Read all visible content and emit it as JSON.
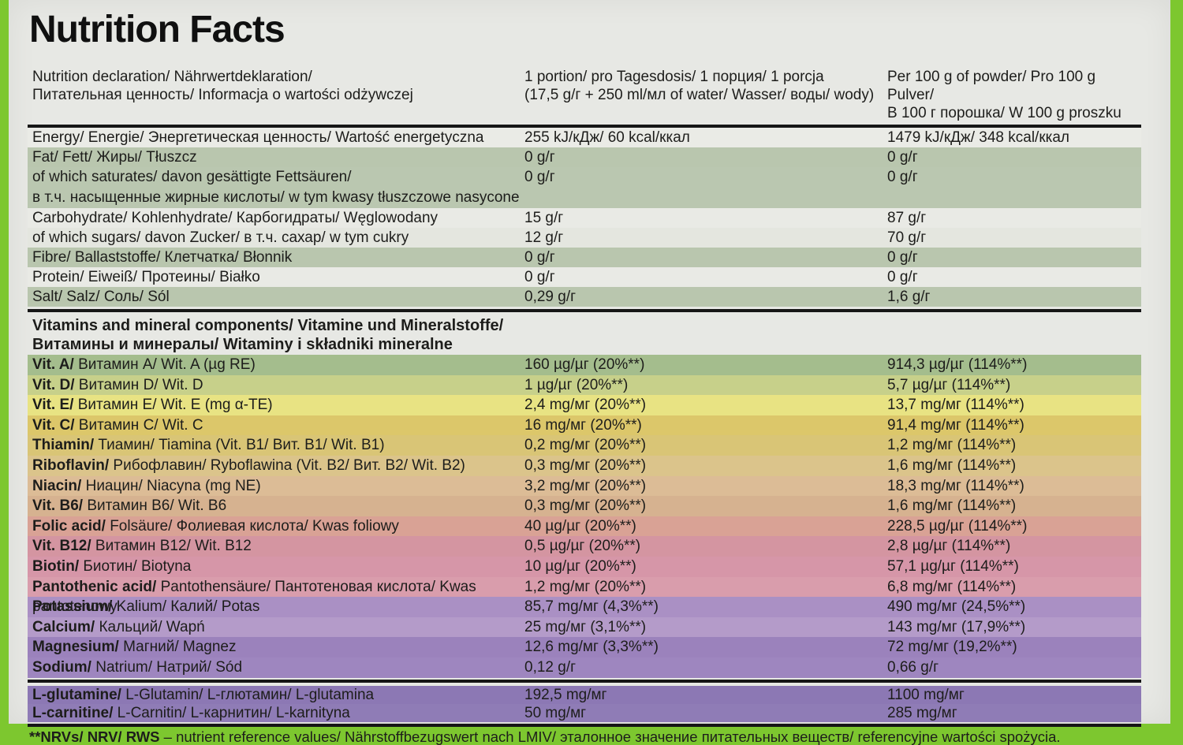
{
  "title": "Nutrition Facts",
  "colors": {
    "package_green": "#7dc72f",
    "paper": "#e7e8e4",
    "rule_black": "#161616",
    "text": "#1d1d1b"
  },
  "header": {
    "col1": [
      "Nutrition declaration/ Nährwertdeklaration/",
      "Питательная ценность/ Informacja o wartości odżywczej"
    ],
    "col2": [
      "1 portion/ pro Tagesdosis/ 1 порция/ 1 porcja",
      "(17,5 g/г + 250 ml/мл of water/ Wasser/ воды/ wody)"
    ],
    "col3": [
      "Per 100 g of powder/ Pro 100 g Pulver/",
      "В 100 г порошка/ W 100 g proszku"
    ]
  },
  "macros": {
    "rows": [
      {
        "label": "Energy/ Energie/ Энергетическая ценность/ Wartość energetyczna",
        "portion": "255 kJ/кДж/ 60 kcal/ккал",
        "per100": "1479 kJ/кДж/ 348 kcal/ккал",
        "bg": "#eaebe6"
      },
      {
        "label": "Fat/ Fett/ Жиры/ Tłuszcz",
        "portion": "0 g/г",
        "per100": "0 g/г",
        "bg": "#b9c6ae"
      },
      {
        "label": "of which saturates/ davon gesättigte Fettsäuren/",
        "label2": "в т.ч. насыщенные жирные кислоты/ w tym kwasy tłuszczowe nasycone",
        "portion": "0 g/г",
        "per100": "0 g/г",
        "bg": "#bac7b0"
      },
      {
        "label": "Carbohydrate/ Kohlenhydrate/ Карбогидраты/ Węglowodany",
        "portion": "15 g/г",
        "per100": "87 g/г",
        "bg": "#e9eae5"
      },
      {
        "label": "of which sugars/ davon Zucker/ в т.ч. сахар/ w tym cukry",
        "portion": "12 g/г",
        "per100": "70 g/г",
        "bg": "#e4e6df"
      },
      {
        "label": "Fibre/ Ballaststoffe/ Клетчатка/ Błonnik",
        "portion": "0 g/г",
        "per100": "0 g/г",
        "bg": "#b9c6ae"
      },
      {
        "label": "Protein/ Eiweiß/ Протеины/ Białko",
        "portion": "0 g/г",
        "per100": "0 g/г",
        "bg": "#e9eae5"
      },
      {
        "label": "Salt/ Salz/ Соль/ Sól",
        "portion": "0,29 g/г",
        "per100": "1,6 g/г",
        "bg": "#b9c6ae"
      }
    ]
  },
  "vitamins_header": [
    "Vitamins and mineral components/ Vitamine und Mineralstoffe/",
    "Витамины и минералы/ Witaminy i składniki mineralne"
  ],
  "vitamins": {
    "rows": [
      {
        "name": "Vit. A/",
        "rest": " Витамин A/ Wit. A (µg RE)",
        "portion": "160 µg/µг (20%**)",
        "per100": "914,3 µg/µг (114%**)",
        "bg": "#a4bd8d"
      },
      {
        "name": "Vit. D/",
        "rest": " Витамин D/ Wit. D",
        "portion": "1 µg/µг (20%**)",
        "per100": "5,7 µg/µг (114%**)",
        "bg": "#c7d08a"
      },
      {
        "name": "Vit. E/",
        "rest": " Витамин E/ Wit. E (mg α-TE)",
        "portion": "2,4 mg/мг (20%**)",
        "per100": "13,7 mg/мг (114%**)",
        "bg": "#e8e383"
      },
      {
        "name": "Vit. C/",
        "rest": " Витамин C/ Wit. C",
        "portion": "16 mg/мг (20%**)",
        "per100": "91,4 mg/мг (114%**)",
        "bg": "#dcc76a"
      },
      {
        "name": "Thiamin/",
        "rest": " Тиамин/ Tiamina (Vit. B1/ Вит. B1/ Wit. B1)",
        "portion": "0,2 mg/мг (20%**)",
        "per100": "1,2 mg/мг (114%**)",
        "bg": "#d9c576"
      },
      {
        "name": "Riboflavin/",
        "rest": " Рибофлавин/ Ryboflawina (Vit. B2/ Вит. B2/ Wit. B2)",
        "portion": "0,3 mg/мг (20%**)",
        "per100": "1,6 mg/мг (114%**)",
        "bg": "#dbc48b"
      },
      {
        "name": "Niacin/",
        "rest": " Ниацин/ Niacyna (mg NE)",
        "portion": "3,2 mg/мг (20%**)",
        "per100": "18,3 mg/мг (114%**)",
        "bg": "#dcbc96"
      },
      {
        "name": "Vit. B6/",
        "rest": " Витамин B6/ Wit. B6",
        "portion": "0,3 mg/мг (20%**)",
        "per100": "1,6 mg/мг (114%**)",
        "bg": "#d6b290"
      },
      {
        "name": "Folic acid/",
        "rest": " Folsäure/ Фолиевая кислота/ Kwas foliowy",
        "portion": "40 µg/µг (20%**)",
        "per100": "228,5 µg/µг (114%**)",
        "bg": "#d9a295"
      },
      {
        "name": "Vit. B12/",
        "rest": " Витамин B12/ Wit. B12",
        "portion": "0,5 µg/µг (20%**)",
        "per100": "2,8 µg/µг (114%**)",
        "bg": "#d495a1"
      },
      {
        "name": "Biotin/",
        "rest": " Биотин/ Biotyna",
        "portion": "10 µg/µг (20%**)",
        "per100": "57,1 µg/µг (114%**)",
        "bg": "#d696a8"
      },
      {
        "name": "Pantothenic acid/",
        "rest": " Pantothensäure/ Пантотеновая кислота/ Kwas pantotenowy",
        "portion": "1,2 mg/мг (20%**)",
        "per100": "6,8 mg/мг (114%**)",
        "bg": "#d99dac"
      },
      {
        "name": "Potassium/",
        "rest": " Kalium/ Калий/ Potas",
        "portion": "85,7 mg/мг (4,3%**)",
        "per100": "490 mg/мг (24,5%**)",
        "bg": "#aa90c4"
      },
      {
        "name": "Calcium/",
        "rest": " Кальций/ Wapń",
        "portion": "25 mg/мг (3,1%**)",
        "per100": "143 mg/мг (17,9%**)",
        "bg": "#b49bc9"
      },
      {
        "name": "Magnesium/",
        "rest": " Магний/ Magnez",
        "portion": "12,6 mg/мг (3,3%**)",
        "per100": "72 mg/мг (19,2%**)",
        "bg": "#9b82bc"
      },
      {
        "name": "Sodium/",
        "rest": " Natrium/ Натрий/ Sód",
        "portion": "0,12 g/г",
        "per100": "0,66 g/г",
        "bg": "#9e86bf"
      }
    ]
  },
  "aminos": {
    "rows": [
      {
        "name": "L-glutamine/",
        "rest": " L-Glutamin/ L-глютамин/ L-glutamina",
        "portion": "192,5 mg/мг",
        "per100": "1100 mg/мг",
        "bg": "#8c78b4"
      },
      {
        "name": "L-carnitine/",
        "rest": " L-Carnitin/ L-карнитин/ L-karnityna",
        "portion": "50 mg/мг",
        "per100": "285 mg/мг",
        "bg": "#8f7cb6"
      }
    ]
  },
  "footnote": {
    "prefix": "**NRVs/ NRV/ RWS",
    "rest": " – nutrient reference values/ Nährstoffbezugswert nach LMIV/ эталонное значение питательных веществ/ referencyjne wartości spożycia."
  }
}
